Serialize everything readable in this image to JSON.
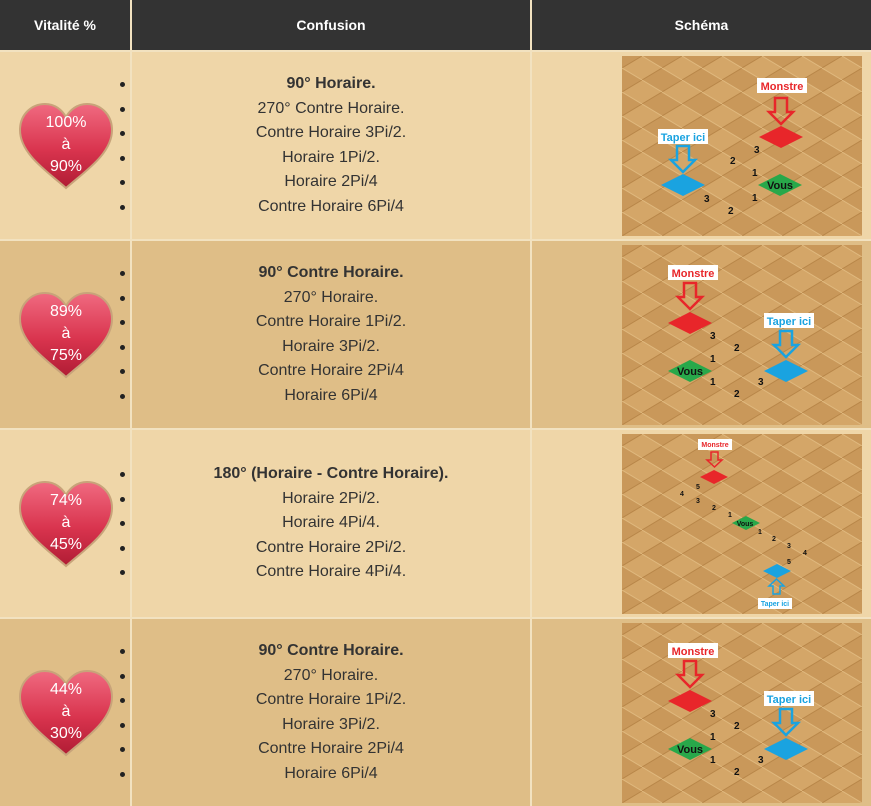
{
  "header": {
    "col1": "Vitalité %",
    "col2": "Confusion",
    "col3": "Schéma"
  },
  "colors": {
    "header_bg": "#333333",
    "row_light": "#efd6a8",
    "row_dark": "#dfbe87",
    "heart": "#d9344e",
    "monstre": "#e8262a",
    "taper": "#1aa3e0",
    "vous": "#28a84a"
  },
  "rows": [
    {
      "vitality": [
        "100%",
        "à",
        "90%"
      ],
      "confusion": [
        "90° Horaire.",
        "270° Contre Horaire.",
        "Contre Horaire 3Pi/2.",
        "Horaire 1Pi/2.",
        "Horaire 2Pi/4",
        "Contre Horaire 6Pi/4"
      ],
      "schema": {
        "monstre": "Monstre",
        "taper": "Taper ici",
        "vous": "Vous",
        "numbers": [
          "3",
          "2",
          "1",
          "1",
          "3",
          "2"
        ]
      }
    },
    {
      "vitality": [
        "89%",
        "à",
        "75%"
      ],
      "confusion": [
        "90° Contre Horaire.",
        "270° Horaire.",
        "Contre Horaire 1Pi/2.",
        "Horaire 3Pi/2.",
        "Contre Horaire 2Pi/4",
        "Horaire 6Pi/4"
      ],
      "schema": {
        "monstre": "Monstre",
        "taper": "Taper ici",
        "vous": "Vous",
        "numbers": [
          "3",
          "2",
          "1",
          "1",
          "2",
          "3"
        ]
      }
    },
    {
      "vitality": [
        "74%",
        "à",
        "45%"
      ],
      "confusion": [
        "180° (Horaire - Contre Horaire).",
        "Horaire 2Pi/2.",
        "Horaire 4Pi/4.",
        "Contre Horaire 2Pi/2.",
        "Contre Horaire 4Pi/4."
      ],
      "schema": {
        "monstre": "Monstre",
        "taper": "Taper ici",
        "vous": "Vous",
        "numbers": [
          "5",
          "4",
          "3",
          "2",
          "1",
          "1",
          "2",
          "3",
          "4",
          "5"
        ]
      }
    },
    {
      "vitality": [
        "44%",
        "à",
        "30%"
      ],
      "confusion": [
        "90° Contre Horaire.",
        "270° Horaire.",
        "Contre Horaire 1Pi/2.",
        "Horaire 3Pi/2.",
        "Contre Horaire 2Pi/4",
        "Horaire 6Pi/4"
      ],
      "schema": {
        "monstre": "Monstre",
        "taper": "Taper ici",
        "vous": "Vous",
        "numbers": [
          "3",
          "2",
          "1",
          "1",
          "2",
          "3"
        ]
      }
    }
  ]
}
